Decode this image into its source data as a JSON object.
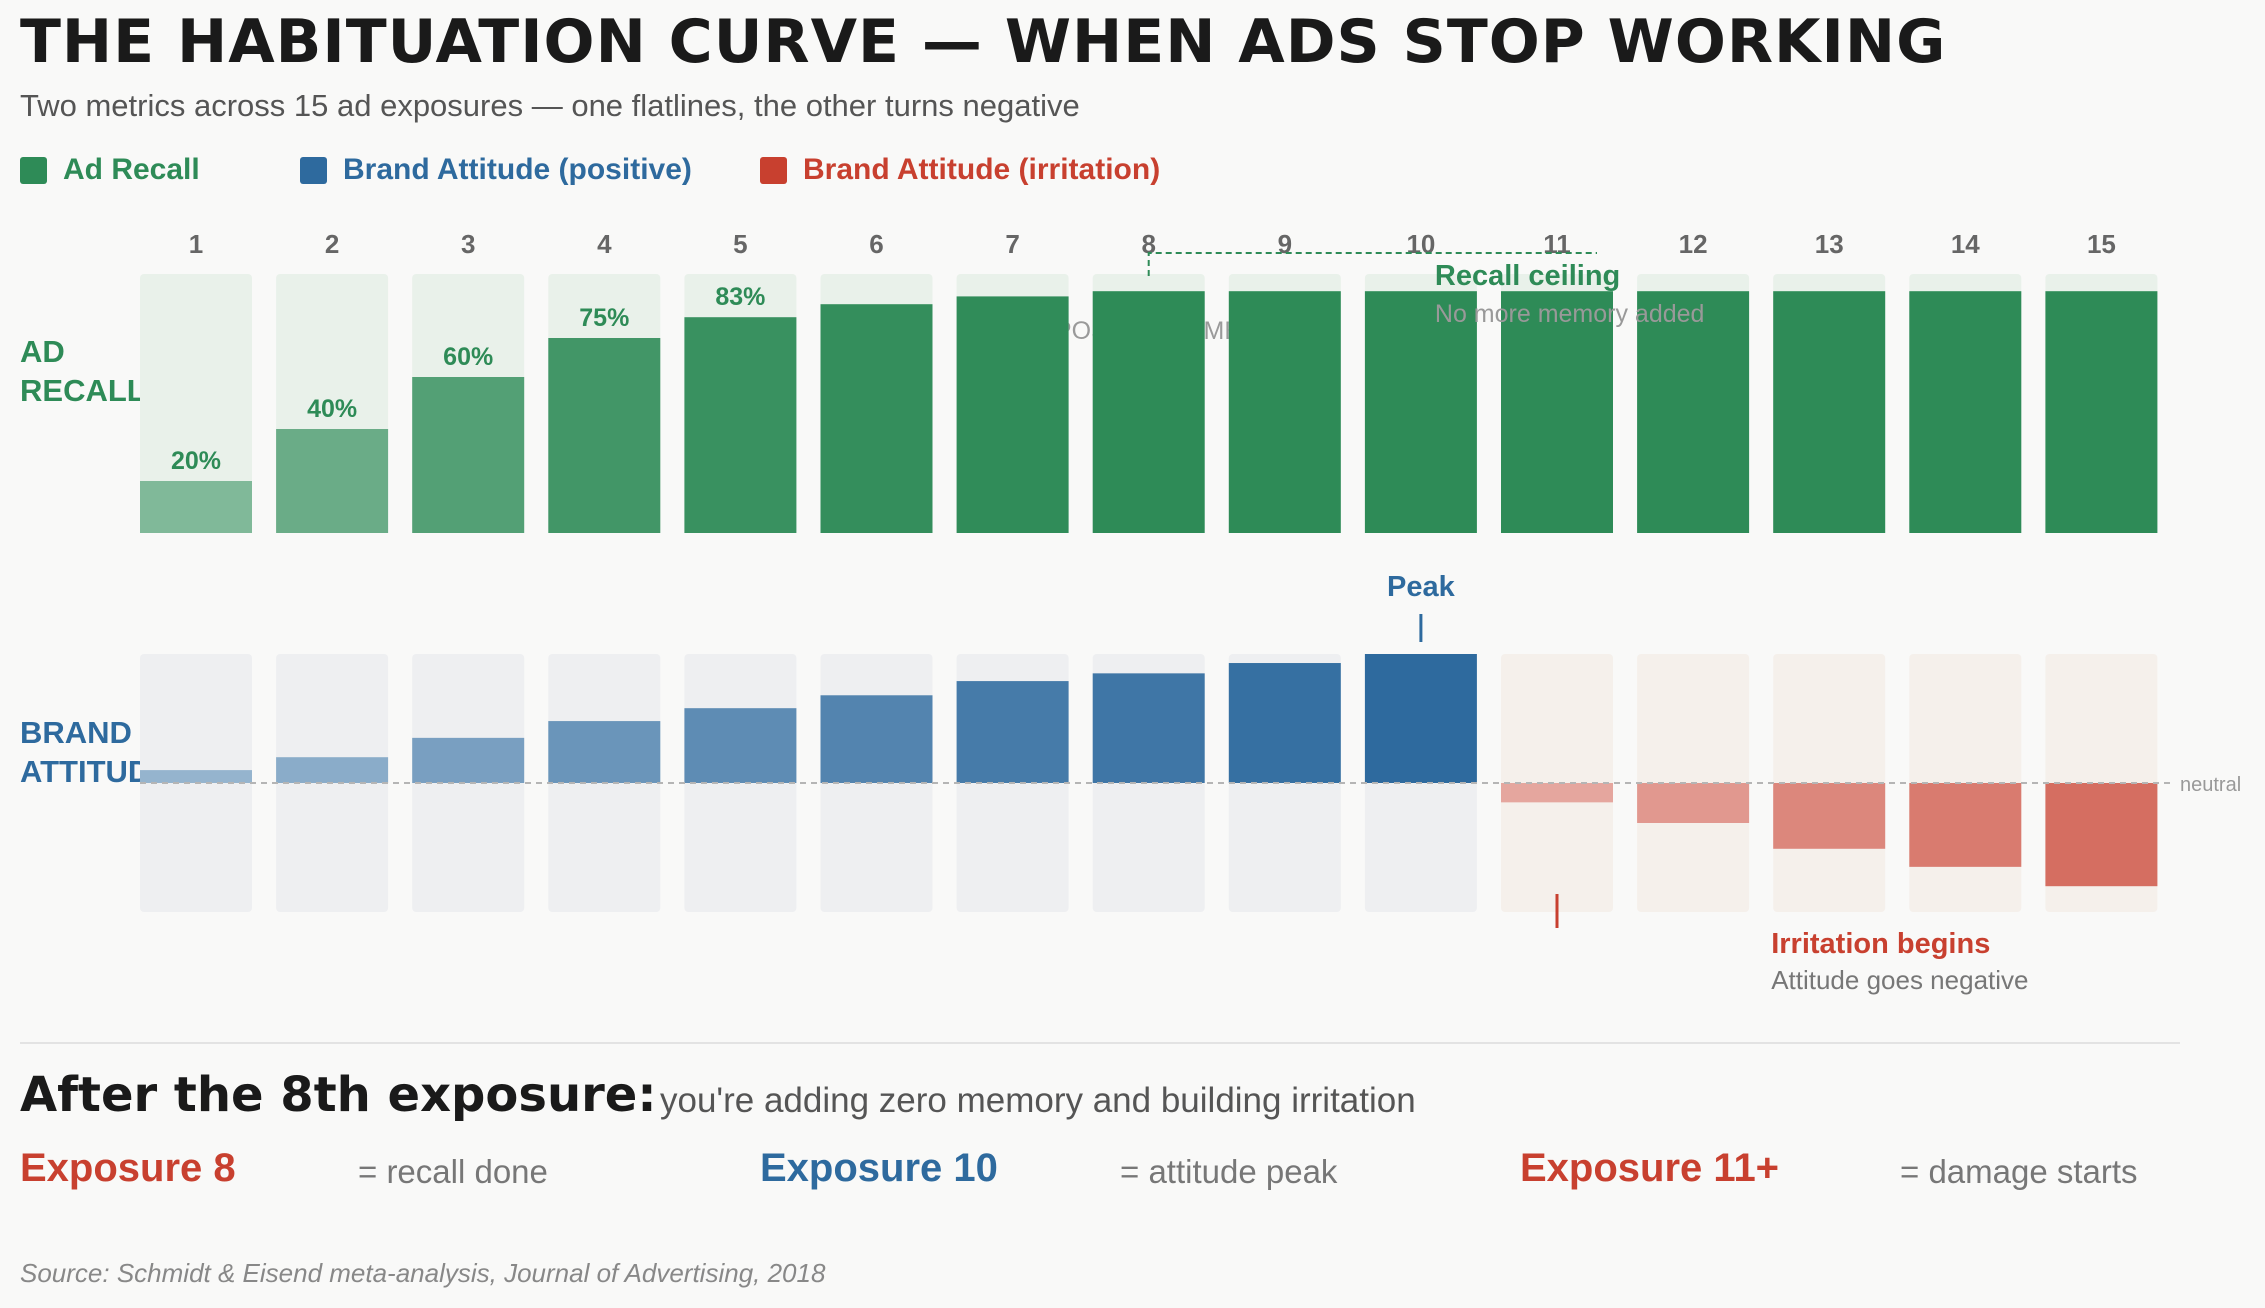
{
  "title": "THE HABITUATION CURVE — WHEN ADS STOP WORKING",
  "subtitle": "Two metrics across 15 ad exposures — one flatlines, the other turns negative",
  "colors": {
    "recall": "#2e8b57",
    "attitude_positive": "#2e6a9e",
    "attitude_irritation": "#c8402f",
    "recall_track": "#e9f1ea",
    "attitude_track": "#eeeff1",
    "irritation_track": "#f5f0eb"
  },
  "legend": [
    {
      "label": "Ad Recall",
      "color": "#2e8b57"
    },
    {
      "label": "Brand Attitude (positive)",
      "color": "#2e6a9e"
    },
    {
      "label": "Brand Attitude (irritation)",
      "color": "#c8402f"
    }
  ],
  "chart_data": {
    "type": "bar",
    "xlabel": "EXPOSURE NUMBER",
    "categories": [
      "1",
      "2",
      "3",
      "4",
      "5",
      "6",
      "7",
      "8",
      "9",
      "10",
      "11",
      "12",
      "13",
      "14",
      "15"
    ],
    "panels": [
      {
        "name": "recall",
        "label_lines": [
          "AD",
          "RECALL"
        ],
        "values": [
          20,
          40,
          60,
          75,
          83,
          88,
          91,
          93,
          93,
          93,
          93,
          93,
          93,
          93,
          93
        ],
        "ylim": [
          0,
          100
        ],
        "data_labels": [
          "20%",
          "40%",
          "60%",
          "75%",
          "83%",
          "",
          "",
          "",
          "",
          "",
          "",
          "",
          "",
          "",
          ""
        ],
        "annotations": [
          {
            "at": "8",
            "span_to": "11",
            "title": "Recall ceiling",
            "text": "No more memory added"
          }
        ]
      },
      {
        "name": "attitude",
        "label_lines": [
          "BRAND",
          "ATTITUDE"
        ],
        "values": [
          10,
          20,
          35,
          48,
          58,
          68,
          79,
          85,
          93,
          100,
          -15,
          -31,
          -51,
          -65,
          -80
        ],
        "ylim": [
          -100,
          100
        ],
        "baseline_label": "neutral",
        "annotations": [
          {
            "at": "10",
            "title": "Peak",
            "text": ""
          },
          {
            "at": "11",
            "title": "Irritation begins",
            "text": "Attitude goes negative"
          }
        ]
      }
    ]
  },
  "takeaway": {
    "headline": "After the 8th exposure:",
    "text": "you're adding zero memory and building irritation"
  },
  "stats": [
    {
      "label": "Exposure 8",
      "desc": "= recall done",
      "color": "#c8402f"
    },
    {
      "label": "Exposure 10",
      "desc": "= attitude peak",
      "color": "#2e6a9e"
    },
    {
      "label": "Exposure 11+",
      "desc": "= damage starts",
      "color": "#c8402f"
    }
  ],
  "source": "Source: Schmidt & Eisend meta-analysis, Journal of Advertising, 2018"
}
